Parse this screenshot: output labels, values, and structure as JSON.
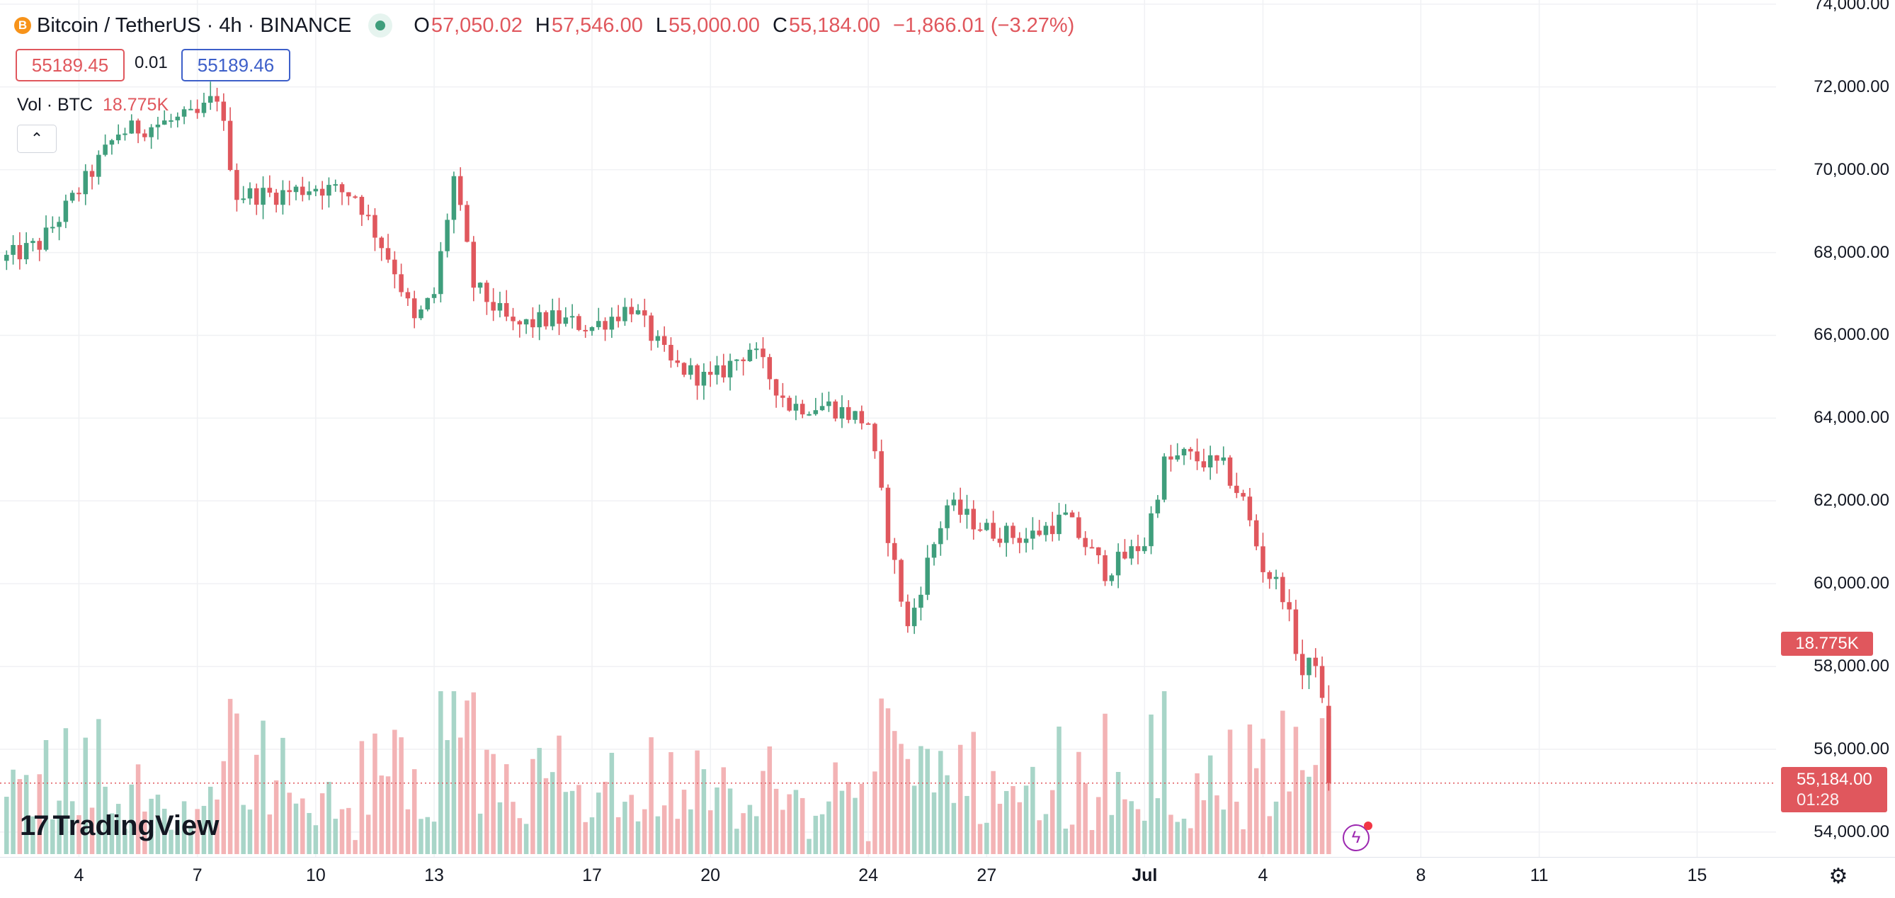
{
  "header": {
    "coin_icon": "B",
    "symbol_title": "Bitcoin / TetherUS · 4h · BINANCE",
    "ohlc": {
      "o_label": "O",
      "o_value": "57,050.02",
      "h_label": "H",
      "h_value": "57,546.00",
      "l_label": "L",
      "l_value": "55,000.00",
      "c_label": "C",
      "c_value": "55,184.00",
      "change": "−1,866.01 (−3.27%)"
    },
    "bid": "55189.45",
    "spread": "0.01",
    "ask": "55189.46",
    "volume_label": "Vol · BTC",
    "volume_value": "18.775K",
    "collapse_icon": "⌃"
  },
  "badges": {
    "volume": "18.775K",
    "last_price": "55,184.00",
    "countdown": "01:28"
  },
  "logo": {
    "mark": "17",
    "text": "TradingView"
  },
  "colors": {
    "up": "#3f9e7c",
    "down": "#e0575d",
    "up_vol": "#a8d5c8",
    "down_vol": "#f3b3b5",
    "grid": "#f0f1f4",
    "last_line": "#e0575d"
  },
  "icons": {
    "bolt": "lightning-bolt-icon",
    "settings": "gear-icon"
  },
  "chart_data": {
    "type": "candlestick",
    "title": "Bitcoin / TetherUS · 4h · BINANCE",
    "interval": "4h",
    "price_axis": {
      "ticks": [
        "74,000.00",
        "72,000.00",
        "70,000.00",
        "68,000.00",
        "66,000.00",
        "64,000.00",
        "62,000.00",
        "60,000.00",
        "58,000.00",
        "56,000.00",
        "54,000.00"
      ],
      "range": [
        53400,
        74100
      ],
      "position": "right"
    },
    "time_axis": {
      "ticks": [
        "4",
        "7",
        "10",
        "13",
        "17",
        "20",
        "24",
        "27",
        "Jul",
        "4",
        "8",
        "11",
        "15"
      ],
      "tick_dates": [
        "2024-06-04",
        "2024-06-07",
        "2024-06-10",
        "2024-06-13",
        "2024-06-17",
        "2024-06-20",
        "2024-06-24",
        "2024-06-27",
        "2024-07-01",
        "2024-07-04",
        "2024-07-08",
        "2024-07-11",
        "2024-07-15"
      ],
      "range": [
        "2024-06-02",
        "2024-07-17"
      ]
    },
    "grid": true,
    "last_price": 55184.0,
    "last_volume": 18775,
    "close_path": [
      {
        "date": "2024-06-02",
        "price": 67800
      },
      {
        "date": "2024-06-03",
        "price": 68200
      },
      {
        "date": "2024-06-04",
        "price": 69500
      },
      {
        "date": "2024-06-05",
        "price": 70900
      },
      {
        "date": "2024-06-06",
        "price": 71100
      },
      {
        "date": "2024-06-07",
        "price": 71300
      },
      {
        "date": "2024-06-07T12:00",
        "price": 71800
      },
      {
        "date": "2024-06-08",
        "price": 69400
      },
      {
        "date": "2024-06-09",
        "price": 69400
      },
      {
        "date": "2024-06-10",
        "price": 69600
      },
      {
        "date": "2024-06-11",
        "price": 69400
      },
      {
        "date": "2024-06-12",
        "price": 67600
      },
      {
        "date": "2024-06-12T12:00",
        "price": 66300
      },
      {
        "date": "2024-06-13",
        "price": 67000
      },
      {
        "date": "2024-06-13T12:00",
        "price": 69800
      },
      {
        "date": "2024-06-14",
        "price": 67200
      },
      {
        "date": "2024-06-15",
        "price": 66200
      },
      {
        "date": "2024-06-16",
        "price": 66400
      },
      {
        "date": "2024-06-17",
        "price": 66200
      },
      {
        "date": "2024-06-18",
        "price": 66700
      },
      {
        "date": "2024-06-19",
        "price": 65300
      },
      {
        "date": "2024-06-20",
        "price": 64900
      },
      {
        "date": "2024-06-21",
        "price": 65700
      },
      {
        "date": "2024-06-22",
        "price": 64300
      },
      {
        "date": "2024-06-23",
        "price": 64300
      },
      {
        "date": "2024-06-24",
        "price": 63900
      },
      {
        "date": "2024-06-24T12:00",
        "price": 61200
      },
      {
        "date": "2024-06-25",
        "price": 58900
      },
      {
        "date": "2024-06-25T12:00",
        "price": 60500
      },
      {
        "date": "2024-06-26",
        "price": 61900
      },
      {
        "date": "2024-06-27",
        "price": 61300
      },
      {
        "date": "2024-06-28",
        "price": 61100
      },
      {
        "date": "2024-06-29",
        "price": 61600
      },
      {
        "date": "2024-06-30",
        "price": 60300
      },
      {
        "date": "2024-07-01",
        "price": 61000
      },
      {
        "date": "2024-07-01T12:00",
        "price": 62900
      },
      {
        "date": "2024-07-02",
        "price": 63100
      },
      {
        "date": "2024-07-03",
        "price": 62800
      },
      {
        "date": "2024-07-03T12:00",
        "price": 62000
      },
      {
        "date": "2024-07-04",
        "price": 60400
      },
      {
        "date": "2024-07-04T12:00",
        "price": 59800
      },
      {
        "date": "2024-07-05",
        "price": 57800
      },
      {
        "date": "2024-07-05T08:00",
        "price": 58200
      },
      {
        "date": "2024-07-05T12:00",
        "price": 57050
      },
      {
        "date": "2024-07-05T16:00",
        "price": 55184
      }
    ],
    "last_candle": {
      "open": 57050.02,
      "high": 57546.0,
      "low": 55000.0,
      "close": 55184.0
    }
  }
}
